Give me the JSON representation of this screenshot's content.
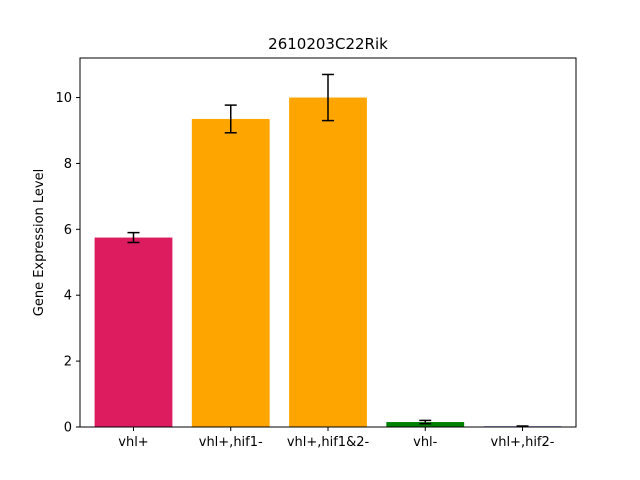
{
  "chart_data": {
    "type": "bar",
    "title": "2610203C22Rik",
    "xlabel": "",
    "ylabel": "Gene Expression Level",
    "ylim": [
      0,
      11.2
    ],
    "yticks": [
      0,
      2,
      4,
      6,
      8,
      10
    ],
    "grid": false,
    "legend": "none",
    "categories": [
      "vhl+",
      "vhl+,hif1-",
      "vhl+,hif1&2-",
      "vhl-",
      "vhl+,hif2-"
    ],
    "values": [
      5.75,
      9.35,
      10.0,
      0.15,
      0.02
    ],
    "errors": [
      0.15,
      0.42,
      0.7,
      0.05,
      0.01
    ],
    "colors": [
      "#dc1c5f",
      "#ffa500",
      "#ffa500",
      "#008000",
      "#0000cd"
    ]
  }
}
